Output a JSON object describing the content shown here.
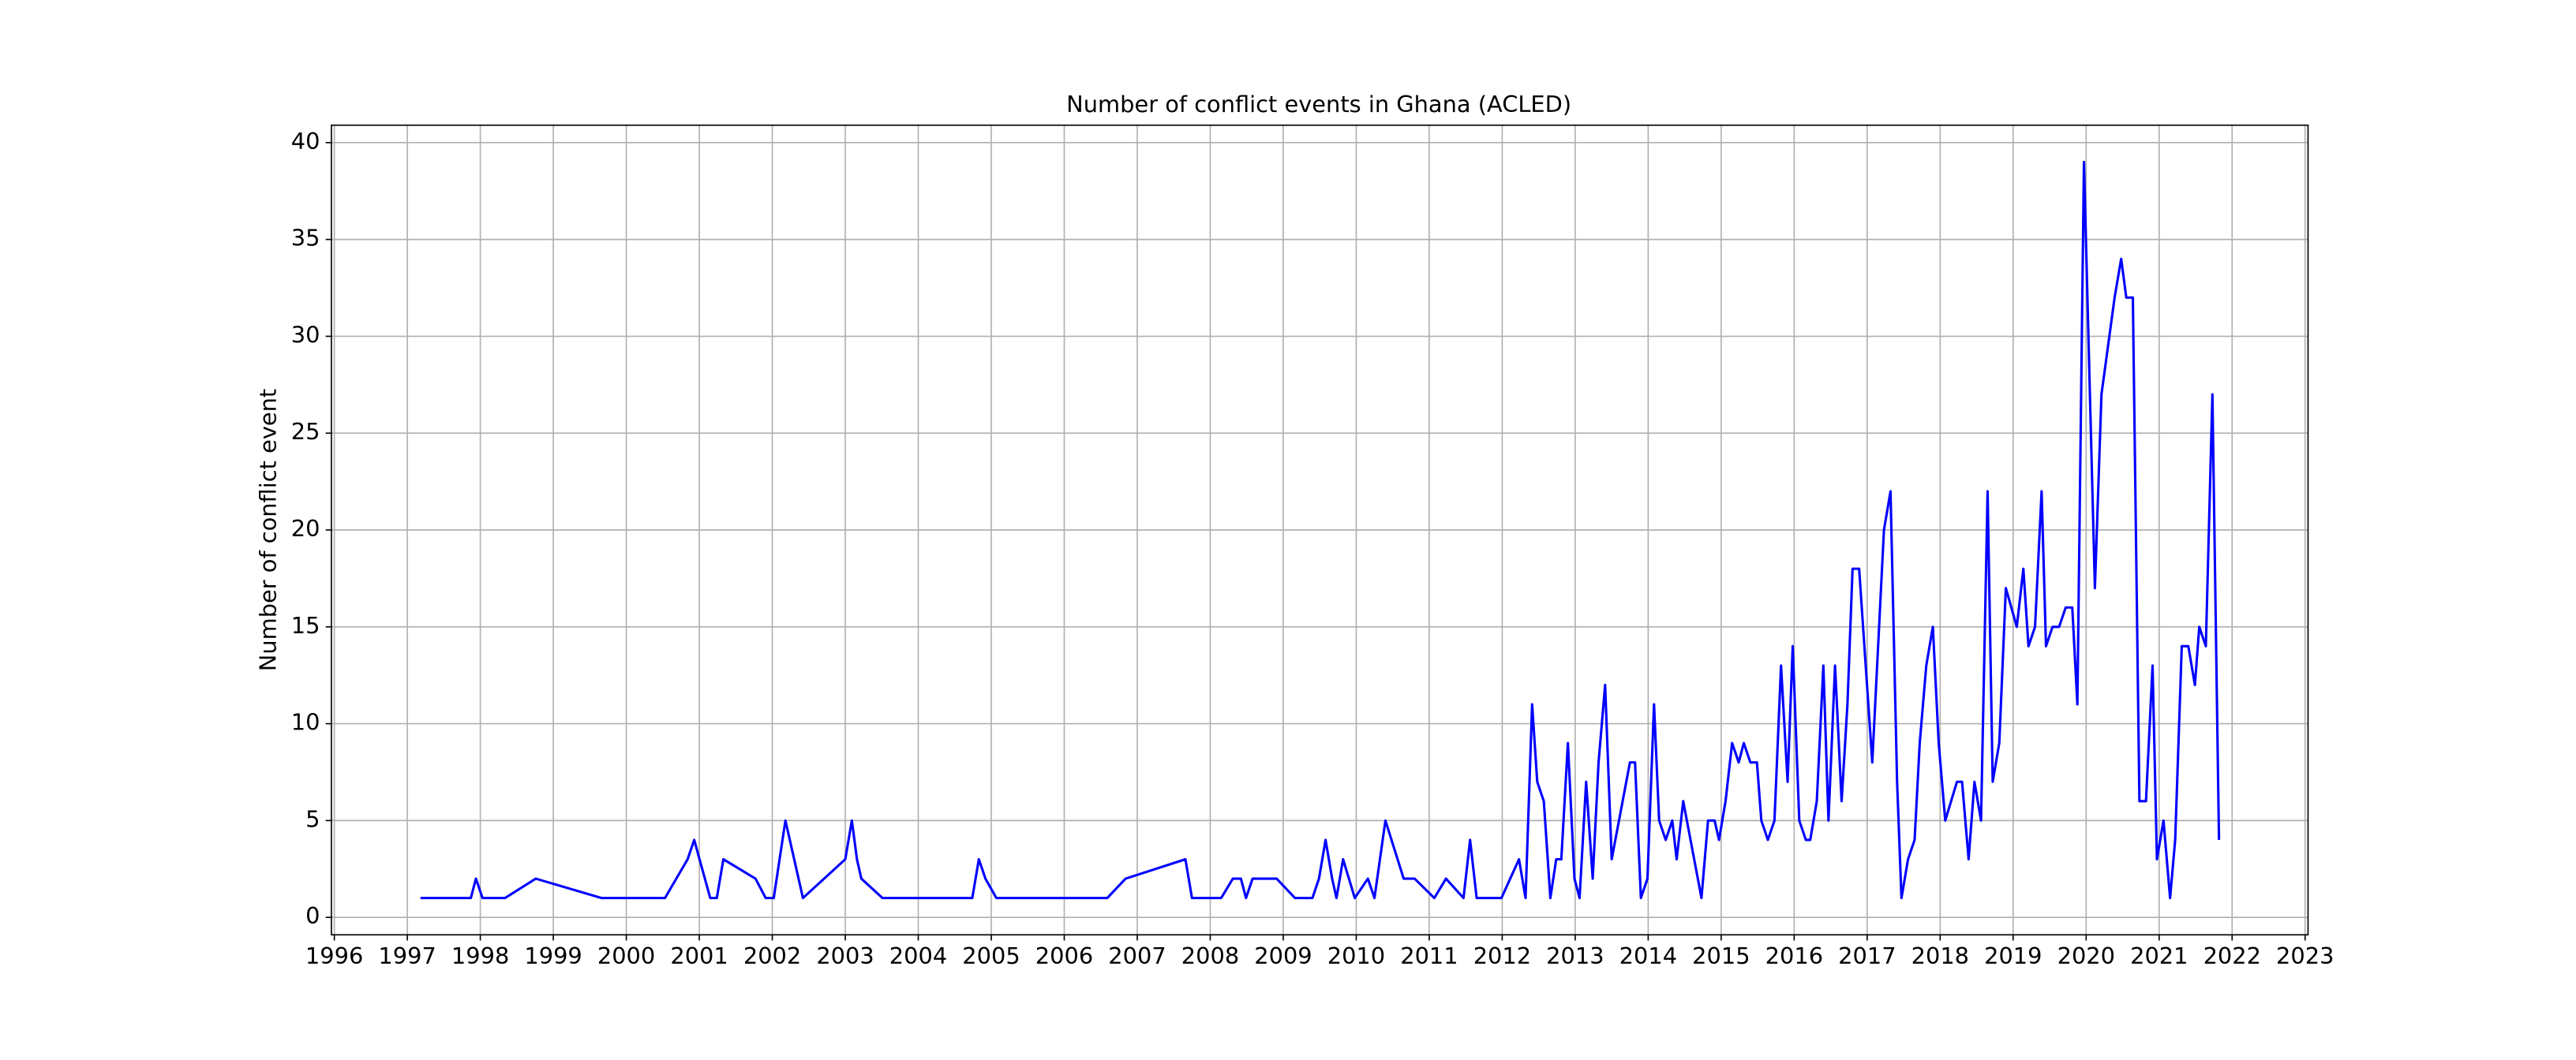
{
  "chart_data": {
    "type": "line",
    "title": "Number of conflict events in Ghana (ACLED)",
    "y_label": "Number of conflict event",
    "x": [
      1997.18,
      1997.87,
      1997.94,
      1998.03,
      1998.34,
      1998.76,
      1999.66,
      2000.53,
      2000.84,
      2000.93,
      2001.15,
      2001.24,
      2001.33,
      2001.77,
      2001.91,
      2002.02,
      2002.18,
      2002.42,
      2003.0,
      2003.09,
      2003.16,
      2003.22,
      2003.51,
      2004.74,
      2004.83,
      2004.92,
      2005.07,
      2006.59,
      2006.84,
      2007.66,
      2007.75,
      2008.15,
      2008.31,
      2008.42,
      2008.49,
      2008.58,
      2008.91,
      2009.16,
      2009.4,
      2009.49,
      2009.58,
      2009.67,
      2009.73,
      2009.82,
      2009.98,
      2010.16,
      2010.25,
      2010.4,
      2010.65,
      2010.8,
      2011.07,
      2011.23,
      2011.47,
      2011.56,
      2011.65,
      2011.99,
      2012.23,
      2012.32,
      2012.41,
      2012.48,
      2012.57,
      2012.66,
      2012.74,
      2012.81,
      2012.9,
      2012.99,
      2013.06,
      2013.15,
      2013.24,
      2013.32,
      2013.41,
      2013.5,
      2013.75,
      2013.82,
      2013.9,
      2013.99,
      2014.08,
      2014.15,
      2014.24,
      2014.33,
      2014.39,
      2014.48,
      2014.73,
      2014.82,
      2014.91,
      2014.97,
      2015.06,
      2015.15,
      2015.24,
      2015.31,
      2015.4,
      2015.49,
      2015.55,
      2015.64,
      2015.73,
      2015.82,
      2015.91,
      2015.98,
      2016.07,
      2016.16,
      2016.22,
      2016.31,
      2016.4,
      2016.47,
      2016.56,
      2016.65,
      2016.73,
      2016.8,
      2016.89,
      2017.07,
      2017.23,
      2017.32,
      2017.41,
      2017.47,
      2017.56,
      2017.65,
      2017.72,
      2017.81,
      2017.9,
      2017.98,
      2018.07,
      2018.23,
      2018.3,
      2018.39,
      2018.47,
      2018.56,
      2018.65,
      2018.72,
      2018.81,
      2018.9,
      2019.05,
      2019.14,
      2019.21,
      2019.3,
      2019.39,
      2019.45,
      2019.54,
      2019.63,
      2019.72,
      2019.81,
      2019.88,
      2019.97,
      2020.12,
      2020.21,
      2020.39,
      2020.48,
      2020.55,
      2020.64,
      2020.73,
      2020.82,
      2020.91,
      2020.97,
      2021.06,
      2021.15,
      2021.22,
      2021.31,
      2021.4,
      2021.49,
      2021.55,
      2021.64,
      2021.73,
      2021.82
    ],
    "series": [
      {
        "color": "#0000ff",
        "values": [
          1,
          1,
          2,
          1,
          1,
          2,
          1,
          1,
          3,
          4,
          1,
          1,
          3,
          2,
          1,
          1,
          5,
          1,
          3,
          5,
          3,
          2,
          1,
          1,
          3,
          2,
          1,
          1,
          2,
          3,
          1,
          1,
          2,
          2,
          1,
          2,
          2,
          1,
          1,
          2,
          4,
          2,
          1,
          3,
          1,
          2,
          1,
          5,
          2,
          2,
          1,
          2,
          1,
          4,
          1,
          1,
          3,
          1,
          11,
          7,
          6,
          1,
          3,
          3,
          9,
          2,
          1,
          7,
          2,
          8,
          12,
          3,
          8,
          8,
          1,
          2,
          11,
          5,
          4,
          5,
          3,
          6,
          1,
          5,
          5,
          4,
          6,
          9,
          8,
          9,
          8,
          8,
          5,
          4,
          5,
          13,
          7,
          14,
          5,
          4,
          4,
          6,
          13,
          5,
          13,
          6,
          11,
          18,
          18,
          8,
          20,
          22,
          7,
          1,
          3,
          4,
          9,
          13,
          15,
          9,
          5,
          7,
          7,
          3,
          7,
          5,
          22,
          7,
          9,
          17,
          15,
          18,
          14,
          15,
          22,
          14,
          15,
          15,
          16,
          16,
          11,
          39,
          17,
          27,
          32,
          34,
          32,
          32,
          6,
          6,
          13,
          3,
          5,
          1,
          4,
          14,
          14,
          12,
          15,
          14,
          27,
          4
        ]
      }
    ],
    "xlim": [
      1995.96,
      2023.04
    ],
    "xticks": [
      1996,
      1997,
      1998,
      1999,
      2000,
      2001,
      2002,
      2003,
      2004,
      2005,
      2006,
      2007,
      2008,
      2009,
      2010,
      2011,
      2012,
      2013,
      2014,
      2015,
      2016,
      2017,
      2018,
      2019,
      2020,
      2021,
      2022,
      2023
    ],
    "ylim": [
      -0.9,
      40.9
    ],
    "yticks": [
      0,
      5,
      10,
      15,
      20,
      25,
      30,
      35,
      40
    ],
    "grid": true
  }
}
